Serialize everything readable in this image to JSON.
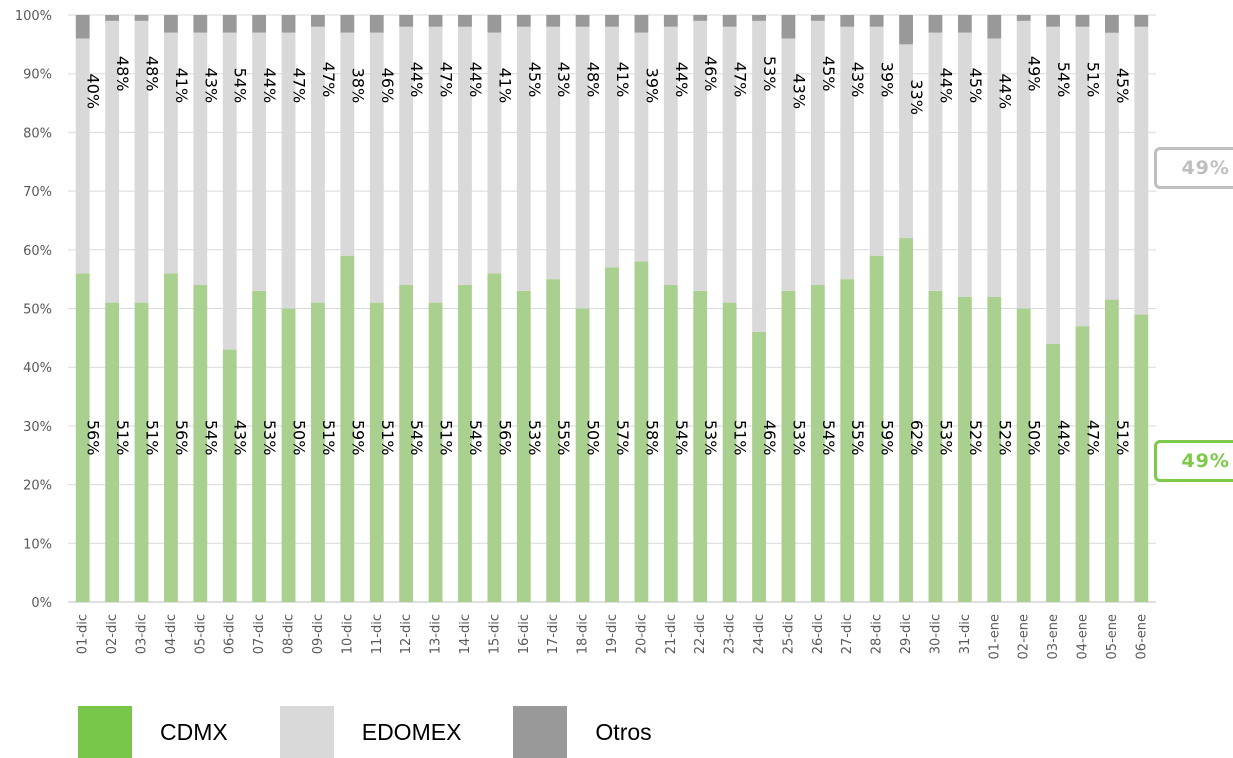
{
  "chart_data": {
    "type": "bar",
    "stacked": true,
    "percent_stacked": true,
    "categories": [
      "01-dic",
      "02-dic",
      "03-dic",
      "04-dic",
      "05-dic",
      "06-dic",
      "07-dic",
      "08-dic",
      "09-dic",
      "10-dic",
      "11-dic",
      "12-dic",
      "13-dic",
      "14-dic",
      "15-dic",
      "16-dic",
      "17-dic",
      "18-dic",
      "19-dic",
      "20-dic",
      "21-dic",
      "22-dic",
      "23-dic",
      "24-dic",
      "25-dic",
      "26-dic",
      "27-dic",
      "28-dic",
      "29-dic",
      "30-dic",
      "31-dic",
      "01-ene",
      "02-ene",
      "03-ene",
      "04-ene",
      "05-ene",
      "06-ene"
    ],
    "series": [
      {
        "name": "CDMX",
        "color": "#a9d08e",
        "values": [
          56,
          51,
          51,
          56,
          54,
          43,
          53,
          50,
          51,
          59,
          51,
          54,
          51,
          54,
          56,
          53,
          55,
          50,
          57,
          58,
          54,
          53,
          51,
          46,
          53,
          54,
          55,
          59,
          62,
          53,
          52,
          52,
          50,
          44,
          47,
          51,
          49
        ],
        "labels": [
          "56%",
          "51%",
          "51%",
          "56%",
          "54%",
          "43%",
          "53%",
          "50%",
          "51%",
          "59%",
          "51%",
          "54%",
          "51%",
          "54%",
          "56%",
          "53%",
          "55%",
          "50%",
          "57%",
          "58%",
          "54%",
          "53%",
          "51%",
          "46%",
          "53%",
          "54%",
          "55%",
          "59%",
          "62%",
          "53%",
          "52%",
          "52%",
          "50%",
          "44%",
          "47%",
          "51%",
          ""
        ]
      },
      {
        "name": "EDOMEX",
        "color": "#d9d9d9",
        "values": [
          40,
          48,
          48,
          41,
          43,
          54,
          44,
          47,
          47,
          38,
          46,
          44,
          47,
          44,
          41,
          45,
          43,
          48,
          41,
          39,
          44,
          46,
          47,
          53,
          43,
          45,
          43,
          39,
          33,
          44,
          45,
          44,
          49,
          54,
          51,
          45,
          49
        ],
        "labels": [
          "40%",
          "48%",
          "48%",
          "41%",
          "43%",
          "54%",
          "44%",
          "47%",
          "47%",
          "38%",
          "46%",
          "44%",
          "47%",
          "44%",
          "41%",
          "45%",
          "43%",
          "48%",
          "41%",
          "39%",
          "44%",
          "46%",
          "47%",
          "53%",
          "43%",
          "45%",
          "43%",
          "39%",
          "33%",
          "44%",
          "45%",
          "44%",
          "49%",
          "54%",
          "51%",
          "45%",
          ""
        ]
      },
      {
        "name": "Otros",
        "color": "#999999",
        "values": [
          4,
          1,
          1,
          3,
          3,
          3,
          3,
          3,
          2,
          3,
          3,
          2,
          2,
          2,
          3,
          2,
          2,
          2,
          2,
          3,
          2,
          1,
          2,
          1,
          4,
          1,
          2,
          2,
          5,
          3,
          3,
          4,
          1,
          2,
          2,
          3,
          2
        ]
      }
    ],
    "y_ticks": [
      "0%",
      "10%",
      "20%",
      "30%",
      "40%",
      "50%",
      "60%",
      "70%",
      "80%",
      "90%",
      "100%"
    ],
    "ylim": [
      0,
      100
    ],
    "grid": true,
    "legend_position": "bottom",
    "callouts": [
      {
        "text": "49%",
        "series": "EDOMEX",
        "color": "#bfbfbf"
      },
      {
        "text": "49%",
        "series": "CDMX",
        "color": "#7dc94a"
      }
    ]
  },
  "legend": {
    "items": [
      {
        "label": "CDMX",
        "color": "#77c64a"
      },
      {
        "label": "EDOMEX",
        "color": "#d9d9d9"
      },
      {
        "label": "Otros",
        "color": "#999999"
      }
    ]
  }
}
